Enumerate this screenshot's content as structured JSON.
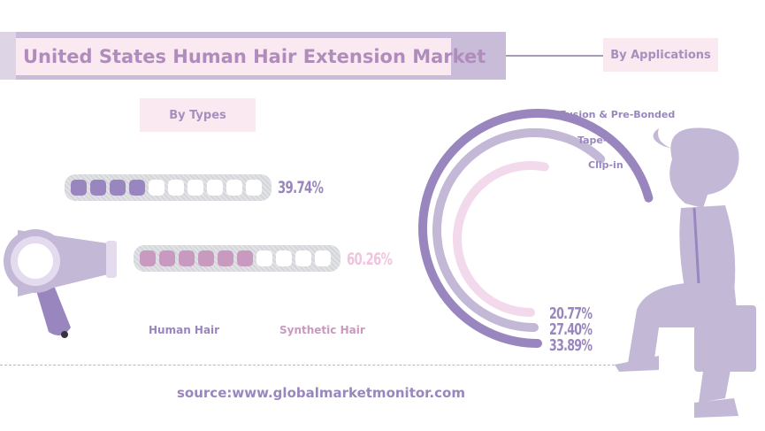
{
  "header": {
    "title": "United States Human Hair Extension Market"
  },
  "sections": {
    "types_label": "By Types",
    "applications_label": "By Applications"
  },
  "source": "source:www.globalmarketmonitor.com",
  "colors": {
    "human": "#9a86be",
    "synthetic": "#c89ac0",
    "fusion": "#9a86be",
    "tape": "#c3b8d6",
    "clip": "#f3d9ec"
  },
  "chart_data": [
    {
      "type": "bar",
      "title": "By Types",
      "unit": "%",
      "categories": [
        "Human Hair",
        "Synthetic Hair"
      ],
      "values": [
        39.74,
        60.26
      ],
      "labels": [
        "39.74%",
        "60.26%"
      ],
      "cells_total": 10
    },
    {
      "type": "radial-bar",
      "title": "By Applications",
      "categories": [
        "Fusion & Pre-Bonded",
        "Tape-in",
        "Clip-in"
      ],
      "values": [
        33.89,
        27.4,
        20.77
      ],
      "labels": [
        "33.89%",
        "27.40%",
        "20.77%"
      ]
    }
  ]
}
